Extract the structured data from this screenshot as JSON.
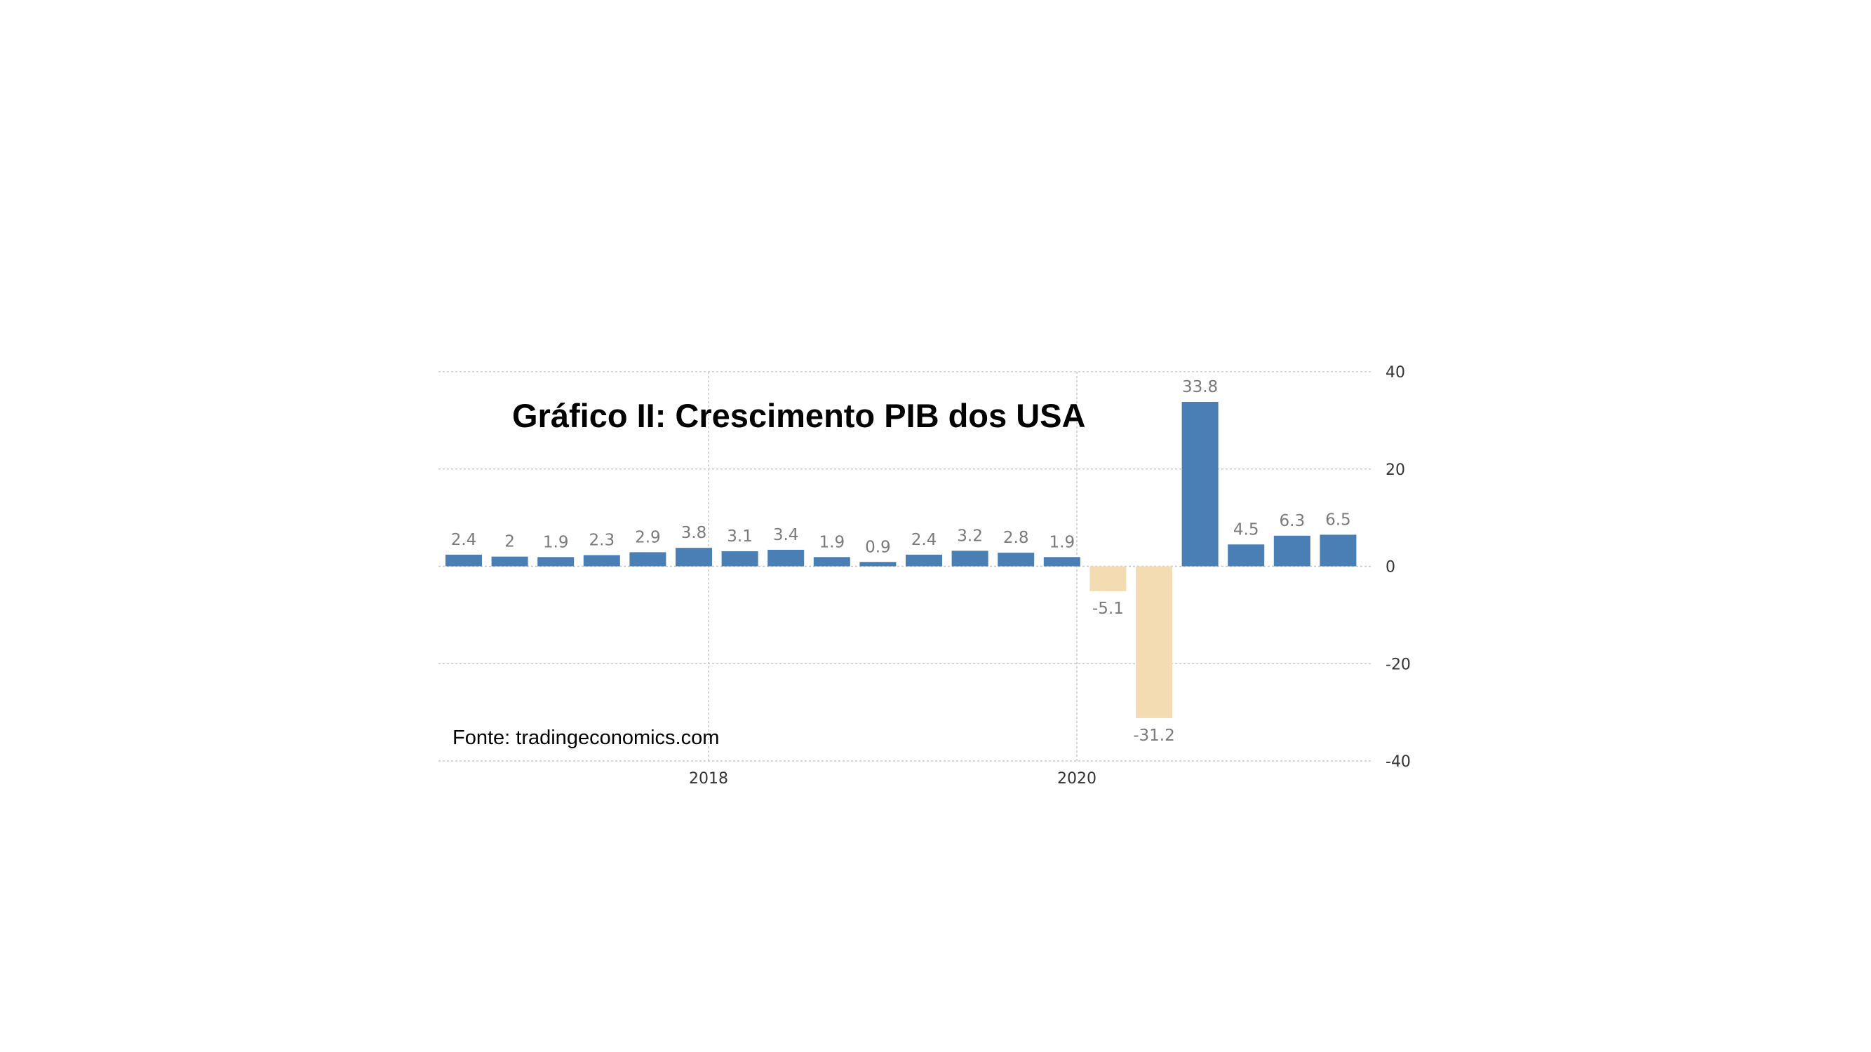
{
  "chart_data": {
    "type": "bar",
    "title": "Gráfico II: Crescimento PIB dos USA",
    "source": "Fonte: tradingeconomics.com",
    "values": [
      2.4,
      2,
      1.9,
      2.3,
      2.9,
      3.8,
      3.1,
      3.4,
      1.9,
      0.9,
      2.4,
      3.2,
      2.8,
      1.9,
      -5.1,
      -31.2,
      33.8,
      4.5,
      6.3,
      6.5
    ],
    "value_labels": [
      "2.4",
      "2",
      "1.9",
      "2.3",
      "2.9",
      "3.8",
      "3.1",
      "3.4",
      "1.9",
      "0.9",
      "2.4",
      "3.2",
      "2.8",
      "1.9",
      "-5.1",
      "-31.2",
      "33.8",
      "4.5",
      "6.3",
      "6.5"
    ],
    "x_tick_labels": [
      "2018",
      "2020"
    ],
    "y_ticks": [
      40,
      20,
      0,
      -20,
      -40
    ],
    "ylim": [
      -40,
      40
    ],
    "grid": true,
    "colors": {
      "positive": "#4a7fb5",
      "negative": "#f3dcb2"
    }
  }
}
